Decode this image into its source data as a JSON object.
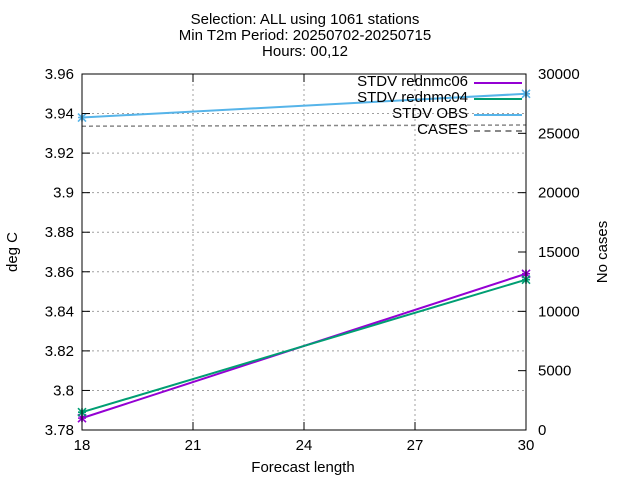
{
  "title_lines": [
    "Selection: ALL using  1061 stations",
    "Min T2m   Period: 20250702-20250715",
    "Hours: 00,12"
  ],
  "chart_data": {
    "type": "line",
    "title": "Selection: ALL using  1061 stations",
    "subtitle": "Min T2m   Period: 20250702-20250715 / Hours: 00,12",
    "xlabel": "Forecast length",
    "ylabel": "deg C",
    "y2label": "No cases",
    "xlim": [
      18,
      30
    ],
    "ylim": [
      3.78,
      3.96
    ],
    "y2lim": [
      0,
      30000
    ],
    "xticks": [
      18,
      21,
      24,
      27,
      30
    ],
    "yticks": [
      3.78,
      3.8,
      3.82,
      3.84,
      3.86,
      3.88,
      3.9,
      3.92,
      3.94,
      3.96
    ],
    "y2ticks": [
      0,
      5000,
      10000,
      15000,
      20000,
      25000,
      30000
    ],
    "grid": true,
    "legend_position": "top-right",
    "x": [
      18,
      30
    ],
    "series": [
      {
        "name": "STDV rednmc06",
        "axis": "y1",
        "color": "#9400d3",
        "marker": "x-star",
        "dash": false,
        "values": [
          3.786,
          3.859
        ]
      },
      {
        "name": "STDV rednmc04",
        "axis": "y1",
        "color": "#009e73",
        "marker": "x-star",
        "dash": false,
        "values": [
          3.789,
          3.856
        ]
      },
      {
        "name": "STDV OBS",
        "axis": "y1",
        "color": "#56b4e9",
        "marker": "x-star",
        "dash": false,
        "values": [
          3.938,
          3.95
        ]
      },
      {
        "name": "CASES",
        "axis": "y2",
        "color": "#888888",
        "marker": "none",
        "dash": true,
        "values": [
          25600,
          25700
        ]
      }
    ]
  }
}
